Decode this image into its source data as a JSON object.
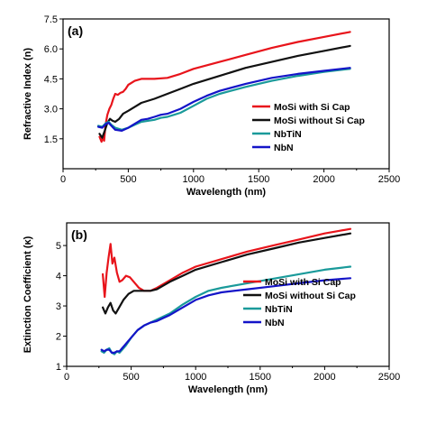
{
  "colors": {
    "mosi_cap": "#e8141b",
    "mosi_nocap": "#111111",
    "nbtin": "#1a9a9a",
    "nbn": "#1414c8"
  },
  "chart_data": [
    {
      "type": "line",
      "panel_label": "(a)",
      "xlabel": "Wavelength (nm)",
      "ylabel": "Refractive Index (n)",
      "xlim": [
        0,
        2500
      ],
      "ylim": [
        0,
        7.5
      ],
      "x_ticks": [
        "0",
        "500",
        "1000",
        "1500",
        "2000",
        "2500"
      ],
      "y_ticks": [
        "1.5",
        "3.0",
        "4.5",
        "6.0",
        "7.5"
      ],
      "y_tick_values": [
        1.5,
        3.0,
        4.5,
        6.0,
        7.5
      ],
      "legend_position": "bottom-right",
      "series": [
        {
          "name": "MoSi with Si Cap",
          "color": "#e8141b",
          "points": [
            [
              280,
              1.6
            ],
            [
              295,
              1.35
            ],
            [
              305,
              1.6
            ],
            [
              315,
              1.4
            ],
            [
              325,
              2.2
            ],
            [
              340,
              2.7
            ],
            [
              355,
              3.0
            ],
            [
              370,
              3.2
            ],
            [
              385,
              3.5
            ],
            [
              400,
              3.75
            ],
            [
              420,
              3.7
            ],
            [
              440,
              3.8
            ],
            [
              460,
              3.85
            ],
            [
              480,
              4.0
            ],
            [
              500,
              4.2
            ],
            [
              550,
              4.4
            ],
            [
              600,
              4.5
            ],
            [
              700,
              4.5
            ],
            [
              800,
              4.55
            ],
            [
              900,
              4.75
            ],
            [
              1000,
              5.0
            ],
            [
              1200,
              5.35
            ],
            [
              1400,
              5.7
            ],
            [
              1600,
              6.05
            ],
            [
              1800,
              6.35
            ],
            [
              2000,
              6.6
            ],
            [
              2200,
              6.85
            ]
          ]
        },
        {
          "name": "MoSi without Si Cap",
          "color": "#111111",
          "points": [
            [
              280,
              1.75
            ],
            [
              300,
              1.55
            ],
            [
              320,
              1.9
            ],
            [
              340,
              2.3
            ],
            [
              360,
              2.5
            ],
            [
              380,
              2.4
            ],
            [
              400,
              2.35
            ],
            [
              430,
              2.5
            ],
            [
              460,
              2.75
            ],
            [
              500,
              2.9
            ],
            [
              550,
              3.1
            ],
            [
              600,
              3.3
            ],
            [
              700,
              3.5
            ],
            [
              800,
              3.75
            ],
            [
              900,
              4.0
            ],
            [
              1000,
              4.25
            ],
            [
              1200,
              4.65
            ],
            [
              1400,
              5.05
            ],
            [
              1600,
              5.35
            ],
            [
              1800,
              5.65
            ],
            [
              2000,
              5.9
            ],
            [
              2200,
              6.15
            ]
          ]
        },
        {
          "name": "NbTiN",
          "color": "#1a9a9a",
          "points": [
            [
              270,
              2.15
            ],
            [
              300,
              2.1
            ],
            [
              330,
              2.3
            ],
            [
              350,
              2.35
            ],
            [
              370,
              2.2
            ],
            [
              400,
              2.05
            ],
            [
              450,
              1.95
            ],
            [
              500,
              2.05
            ],
            [
              550,
              2.2
            ],
            [
              600,
              2.35
            ],
            [
              650,
              2.4
            ],
            [
              700,
              2.45
            ],
            [
              750,
              2.55
            ],
            [
              800,
              2.6
            ],
            [
              900,
              2.8
            ],
            [
              1000,
              3.15
            ],
            [
              1100,
              3.5
            ],
            [
              1200,
              3.75
            ],
            [
              1400,
              4.1
            ],
            [
              1600,
              4.4
            ],
            [
              1800,
              4.65
            ],
            [
              2000,
              4.85
            ],
            [
              2200,
              5.0
            ]
          ]
        },
        {
          "name": "NbN",
          "color": "#1414c8",
          "points": [
            [
              270,
              2.1
            ],
            [
              300,
              2.05
            ],
            [
              330,
              2.25
            ],
            [
              350,
              2.3
            ],
            [
              370,
              2.15
            ],
            [
              400,
              1.95
            ],
            [
              450,
              1.9
            ],
            [
              500,
              2.05
            ],
            [
              550,
              2.25
            ],
            [
              600,
              2.45
            ],
            [
              650,
              2.5
            ],
            [
              700,
              2.6
            ],
            [
              750,
              2.7
            ],
            [
              800,
              2.75
            ],
            [
              900,
              3.0
            ],
            [
              1000,
              3.35
            ],
            [
              1100,
              3.65
            ],
            [
              1200,
              3.9
            ],
            [
              1400,
              4.25
            ],
            [
              1600,
              4.55
            ],
            [
              1800,
              4.75
            ],
            [
              2000,
              4.9
            ],
            [
              2200,
              5.05
            ]
          ]
        }
      ]
    },
    {
      "type": "line",
      "panel_label": "(b)",
      "xlabel": "Wavelength (nm)",
      "ylabel": "Extinction Coefficient (κ)",
      "xlim": [
        0,
        2500
      ],
      "ylim": [
        1,
        5.75
      ],
      "x_ticks": [
        "0",
        "500",
        "1000",
        "1500",
        "2000",
        "2500"
      ],
      "y_ticks": [
        "1",
        "2",
        "3",
        "4",
        "5"
      ],
      "y_tick_values": [
        1,
        2,
        3,
        4,
        5
      ],
      "legend_position": "bottom-right",
      "series": [
        {
          "name": "MoSi with Si Cap",
          "color": "#e8141b",
          "points": [
            [
              280,
              4.05
            ],
            [
              295,
              3.3
            ],
            [
              310,
              4.1
            ],
            [
              325,
              4.6
            ],
            [
              340,
              5.05
            ],
            [
              355,
              4.4
            ],
            [
              370,
              4.6
            ],
            [
              390,
              4.1
            ],
            [
              410,
              3.8
            ],
            [
              430,
              3.85
            ],
            [
              460,
              4.0
            ],
            [
              490,
              3.95
            ],
            [
              520,
              3.8
            ],
            [
              560,
              3.6
            ],
            [
              600,
              3.5
            ],
            [
              650,
              3.5
            ],
            [
              700,
              3.6
            ],
            [
              800,
              3.85
            ],
            [
              900,
              4.1
            ],
            [
              1000,
              4.3
            ],
            [
              1200,
              4.55
            ],
            [
              1400,
              4.8
            ],
            [
              1600,
              5.0
            ],
            [
              1800,
              5.2
            ],
            [
              2000,
              5.4
            ],
            [
              2200,
              5.55
            ]
          ]
        },
        {
          "name": "MoSi without Si Cap",
          "color": "#111111",
          "points": [
            [
              280,
              2.95
            ],
            [
              300,
              2.75
            ],
            [
              320,
              2.95
            ],
            [
              340,
              3.1
            ],
            [
              360,
              2.85
            ],
            [
              380,
              2.75
            ],
            [
              400,
              2.9
            ],
            [
              440,
              3.2
            ],
            [
              480,
              3.4
            ],
            [
              520,
              3.5
            ],
            [
              560,
              3.5
            ],
            [
              600,
              3.5
            ],
            [
              650,
              3.5
            ],
            [
              700,
              3.55
            ],
            [
              800,
              3.8
            ],
            [
              900,
              4.0
            ],
            [
              1000,
              4.2
            ],
            [
              1200,
              4.45
            ],
            [
              1400,
              4.7
            ],
            [
              1600,
              4.9
            ],
            [
              1800,
              5.1
            ],
            [
              2000,
              5.25
            ],
            [
              2200,
              5.4
            ]
          ]
        },
        {
          "name": "NbTiN",
          "color": "#1a9a9a",
          "points": [
            [
              270,
              1.5
            ],
            [
              290,
              1.45
            ],
            [
              310,
              1.55
            ],
            [
              330,
              1.6
            ],
            [
              350,
              1.45
            ],
            [
              370,
              1.4
            ],
            [
              390,
              1.5
            ],
            [
              410,
              1.45
            ],
            [
              430,
              1.55
            ],
            [
              460,
              1.7
            ],
            [
              500,
              1.95
            ],
            [
              550,
              2.2
            ],
            [
              600,
              2.35
            ],
            [
              650,
              2.45
            ],
            [
              700,
              2.55
            ],
            [
              750,
              2.65
            ],
            [
              800,
              2.75
            ],
            [
              900,
              3.05
            ],
            [
              1000,
              3.3
            ],
            [
              1100,
              3.5
            ],
            [
              1200,
              3.6
            ],
            [
              1400,
              3.75
            ],
            [
              1600,
              3.9
            ],
            [
              1800,
              4.05
            ],
            [
              2000,
              4.2
            ],
            [
              2200,
              4.3
            ]
          ]
        },
        {
          "name": "NbN",
          "color": "#1414c8",
          "points": [
            [
              270,
              1.55
            ],
            [
              290,
              1.5
            ],
            [
              310,
              1.55
            ],
            [
              330,
              1.55
            ],
            [
              350,
              1.45
            ],
            [
              370,
              1.45
            ],
            [
              390,
              1.5
            ],
            [
              410,
              1.5
            ],
            [
              430,
              1.6
            ],
            [
              460,
              1.75
            ],
            [
              500,
              1.95
            ],
            [
              550,
              2.2
            ],
            [
              600,
              2.35
            ],
            [
              650,
              2.45
            ],
            [
              700,
              2.5
            ],
            [
              750,
              2.6
            ],
            [
              800,
              2.7
            ],
            [
              900,
              2.95
            ],
            [
              1000,
              3.2
            ],
            [
              1100,
              3.35
            ],
            [
              1200,
              3.45
            ],
            [
              1400,
              3.55
            ],
            [
              1600,
              3.65
            ],
            [
              1800,
              3.75
            ],
            [
              2000,
              3.85
            ],
            [
              2200,
              3.92
            ]
          ]
        }
      ]
    }
  ]
}
